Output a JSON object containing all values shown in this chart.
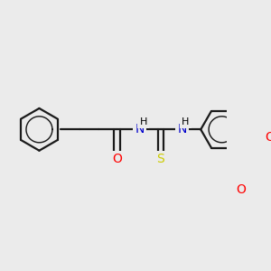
{
  "bg_color": "#ebebeb",
  "bond_color": "#1a1a1a",
  "bond_width": 1.6,
  "atom_colors": {
    "O": "#ff0000",
    "N": "#0000cc",
    "S": "#cccc00",
    "H": "#000000",
    "C": "#1a1a1a"
  },
  "figsize": [
    3.0,
    3.0
  ],
  "dpi": 100
}
